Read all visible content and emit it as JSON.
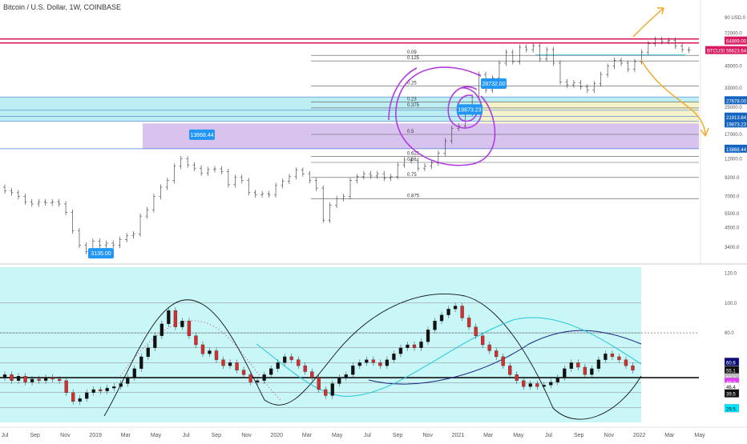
{
  "header": {
    "title": "Bitcoin / U.S. Dollar, 1W, COINBASE"
  },
  "chart_data": {
    "type": "candlestick",
    "price_axis": {
      "scale": "log",
      "ticks": [
        "90 USD.0",
        "72000.0",
        "45000.0",
        "33000.0",
        "25000.0",
        "17000.0",
        "12000.0",
        "9200.0",
        "7000.0",
        "5500.0",
        "4500.0",
        "3400.0"
      ]
    },
    "time_axis": {
      "labels": [
        "Jul",
        "Sep",
        "Nov",
        "2019",
        "Mar",
        "May",
        "Jul",
        "Sep",
        "Nov",
        "2020",
        "Mar",
        "May",
        "Jul",
        "Sep",
        "Nov",
        "2021",
        "Mar",
        "May",
        "Jul",
        "Sep",
        "Nov",
        "2022",
        "Mar",
        "May"
      ]
    },
    "price_badges": [
      {
        "text": "64899.00",
        "value": 64899,
        "bg": "#d81b60"
      },
      {
        "text": "56623.64",
        "value": 56623.64,
        "bg": "#d81b60",
        "symbol": "BTCUSD"
      },
      {
        "text": "27678.00",
        "value": 27678,
        "bg": "#1565c0"
      },
      {
        "text": "21913.84",
        "value": 21913.84,
        "bg": "#1565c0"
      },
      {
        "text": "19873.23",
        "value": 19873.23,
        "bg": "#1565c0"
      },
      {
        "text": "13868.44",
        "value": 13868.44,
        "bg": "#1565c0"
      }
    ],
    "callouts": [
      {
        "text": "13868.44",
        "value": 13868.44
      },
      {
        "text": "3135.00",
        "value": 3135
      },
      {
        "text": "28732.00",
        "value": 28732
      },
      {
        "text": "19873.23",
        "value": 19873.23
      }
    ],
    "fib_levels": [
      {
        "label": "0.09",
        "value": 52500
      },
      {
        "label": "0.125",
        "value": 48500
      },
      {
        "label": "0.25",
        "value": 34000
      },
      {
        "label": "0.23",
        "value": 27000
      },
      {
        "label": "0.375",
        "value": 24800
      },
      {
        "label": "0.5",
        "value": 17000
      },
      {
        "label": "0.625",
        "value": 12400
      },
      {
        "label": "0.66",
        "value": 11400
      },
      {
        "label": "0.75",
        "value": 9200
      },
      {
        "label": "0.875",
        "value": 6800
      }
    ],
    "zones": [
      {
        "name": "cyan-band",
        "from": 20500,
        "to": 29000,
        "color": "#b2ebf2"
      },
      {
        "name": "yellow-band",
        "from": 19873,
        "to": 27000,
        "color": "#fff3c4"
      },
      {
        "name": "purple-band",
        "from": 13868,
        "to": 19873,
        "color": "#d1b8ec"
      }
    ],
    "price_series": [
      {
        "o": 8000,
        "c": 7600
      },
      {
        "o": 7600,
        "c": 7400
      },
      {
        "o": 7400,
        "c": 7000
      },
      {
        "o": 7000,
        "c": 6500
      },
      {
        "o": 6500,
        "c": 6300
      },
      {
        "o": 6300,
        "c": 6500
      },
      {
        "o": 6500,
        "c": 6400
      },
      {
        "o": 6400,
        "c": 6500
      },
      {
        "o": 6500,
        "c": 6300
      },
      {
        "o": 6300,
        "c": 5600
      },
      {
        "o": 5600,
        "c": 4300
      },
      {
        "o": 4300,
        "c": 3500
      },
      {
        "o": 3500,
        "c": 3200
      },
      {
        "o": 3200,
        "c": 3700
      },
      {
        "o": 3700,
        "c": 3500
      },
      {
        "o": 3500,
        "c": 3600
      },
      {
        "o": 3600,
        "c": 3500
      },
      {
        "o": 3500,
        "c": 3800
      },
      {
        "o": 3800,
        "c": 4000
      },
      {
        "o": 4000,
        "c": 4100
      },
      {
        "o": 4100,
        "c": 5300
      },
      {
        "o": 5300,
        "c": 5800
      },
      {
        "o": 5800,
        "c": 7000
      },
      {
        "o": 7000,
        "c": 8000
      },
      {
        "o": 8000,
        "c": 8800
      },
      {
        "o": 8800,
        "c": 10800
      },
      {
        "o": 10800,
        "c": 12000
      },
      {
        "o": 12000,
        "c": 11000
      },
      {
        "o": 11000,
        "c": 10500
      },
      {
        "o": 10500,
        "c": 9800
      },
      {
        "o": 9800,
        "c": 10300
      },
      {
        "o": 10300,
        "c": 10400
      },
      {
        "o": 10400,
        "c": 10000
      },
      {
        "o": 10000,
        "c": 8300
      },
      {
        "o": 8300,
        "c": 9200
      },
      {
        "o": 9200,
        "c": 8800
      },
      {
        "o": 8800,
        "c": 7400
      },
      {
        "o": 7400,
        "c": 7200
      },
      {
        "o": 7200,
        "c": 7300
      },
      {
        "o": 7300,
        "c": 7200
      },
      {
        "o": 7200,
        "c": 8200
      },
      {
        "o": 8200,
        "c": 8700
      },
      {
        "o": 8700,
        "c": 9300
      },
      {
        "o": 9300,
        "c": 10200
      },
      {
        "o": 10200,
        "c": 9700
      },
      {
        "o": 9700,
        "c": 8800
      },
      {
        "o": 8800,
        "c": 7900
      },
      {
        "o": 7900,
        "c": 5000
      },
      {
        "o": 5000,
        "c": 6200
      },
      {
        "o": 6200,
        "c": 6800
      },
      {
        "o": 6800,
        "c": 7000
      },
      {
        "o": 7000,
        "c": 8800
      },
      {
        "o": 8800,
        "c": 9300
      },
      {
        "o": 9300,
        "c": 9700
      },
      {
        "o": 9700,
        "c": 9400
      },
      {
        "o": 9400,
        "c": 9700
      },
      {
        "o": 9700,
        "c": 9100
      },
      {
        "o": 9100,
        "c": 9300
      },
      {
        "o": 9300,
        "c": 11000
      },
      {
        "o": 11000,
        "c": 11800
      },
      {
        "o": 11800,
        "c": 11700
      },
      {
        "o": 11700,
        "c": 10500
      },
      {
        "o": 10500,
        "c": 10800
      },
      {
        "o": 10800,
        "c": 11300
      },
      {
        "o": 11300,
        "c": 13000
      },
      {
        "o": 13000,
        "c": 15500
      },
      {
        "o": 15500,
        "c": 18500
      },
      {
        "o": 18500,
        "c": 19200
      },
      {
        "o": 19200,
        "c": 23000
      },
      {
        "o": 23000,
        "c": 29000
      },
      {
        "o": 29000,
        "c": 40000
      },
      {
        "o": 40000,
        "c": 32000
      },
      {
        "o": 32000,
        "c": 38000
      },
      {
        "o": 38000,
        "c": 47000
      },
      {
        "o": 47000,
        "c": 55000
      },
      {
        "o": 55000,
        "c": 48000
      },
      {
        "o": 48000,
        "c": 59000
      },
      {
        "o": 59000,
        "c": 57000
      },
      {
        "o": 57000,
        "c": 60000
      },
      {
        "o": 60000,
        "c": 50000
      },
      {
        "o": 50000,
        "c": 57000
      },
      {
        "o": 57000,
        "c": 47000
      },
      {
        "o": 47000,
        "c": 36000
      },
      {
        "o": 36000,
        "c": 34500
      },
      {
        "o": 34500,
        "c": 35500
      },
      {
        "o": 35500,
        "c": 33500
      },
      {
        "o": 33500,
        "c": 32000
      },
      {
        "o": 32000,
        "c": 35000
      },
      {
        "o": 35000,
        "c": 40000
      },
      {
        "o": 40000,
        "c": 45000
      },
      {
        "o": 45000,
        "c": 49000
      },
      {
        "o": 49000,
        "c": 47000
      },
      {
        "o": 47000,
        "c": 43000
      },
      {
        "o": 43000,
        "c": 48000
      },
      {
        "o": 48000,
        "c": 55000
      },
      {
        "o": 55000,
        "c": 62000
      },
      {
        "o": 62000,
        "c": 66000
      },
      {
        "o": 66000,
        "c": 64000
      },
      {
        "o": 64000,
        "c": 65000
      },
      {
        "o": 65000,
        "c": 60000
      },
      {
        "o": 60000,
        "c": 57000
      },
      {
        "o": 57000,
        "c": 56600
      }
    ],
    "oscillator": {
      "axis_ticks": [
        "120.0",
        "100.0",
        "80.0"
      ],
      "level_badges": [
        {
          "text": "60.6",
          "bg": "#0d0d7a",
          "fg": "#ffffff"
        },
        {
          "text": "55.1",
          "bg": "#111111",
          "fg": "#ffffff"
        },
        {
          "text": "50.2",
          "bg": "#bdbdbd",
          "fg": "#ffffff"
        },
        {
          "text": "47.2",
          "bg": "#e040fb",
          "fg": "#ffffff"
        },
        {
          "text": "46.4",
          "bg": "#ffffff",
          "fg": "#111111"
        },
        {
          "text": "39.5",
          "bg": "#111111",
          "fg": "#ffffff"
        },
        {
          "text": "29.5",
          "bg": "#00e5ff",
          "fg": "#111111"
        }
      ],
      "bars": [
        {
          "o": 50,
          "c": 52
        },
        {
          "o": 52,
          "c": 48
        },
        {
          "o": 48,
          "c": 51
        },
        {
          "o": 51,
          "c": 47
        },
        {
          "o": 47,
          "c": 49
        },
        {
          "o": 49,
          "c": 48
        },
        {
          "o": 48,
          "c": 50
        },
        {
          "o": 50,
          "c": 49
        },
        {
          "o": 49,
          "c": 48
        },
        {
          "o": 48,
          "c": 40
        },
        {
          "o": 40,
          "c": 34
        },
        {
          "o": 34,
          "c": 36
        },
        {
          "o": 36,
          "c": 40
        },
        {
          "o": 40,
          "c": 42
        },
        {
          "o": 42,
          "c": 41
        },
        {
          "o": 41,
          "c": 43
        },
        {
          "o": 43,
          "c": 44
        },
        {
          "o": 44,
          "c": 46
        },
        {
          "o": 46,
          "c": 50
        },
        {
          "o": 50,
          "c": 56
        },
        {
          "o": 56,
          "c": 64
        },
        {
          "o": 64,
          "c": 70
        },
        {
          "o": 70,
          "c": 78
        },
        {
          "o": 78,
          "c": 86
        },
        {
          "o": 86,
          "c": 95
        },
        {
          "o": 95,
          "c": 84
        },
        {
          "o": 84,
          "c": 88
        },
        {
          "o": 88,
          "c": 78
        },
        {
          "o": 78,
          "c": 72
        },
        {
          "o": 72,
          "c": 66
        },
        {
          "o": 66,
          "c": 68
        },
        {
          "o": 68,
          "c": 62
        },
        {
          "o": 62,
          "c": 58
        },
        {
          "o": 58,
          "c": 60
        },
        {
          "o": 60,
          "c": 55
        },
        {
          "o": 55,
          "c": 52
        },
        {
          "o": 52,
          "c": 47
        },
        {
          "o": 47,
          "c": 48
        },
        {
          "o": 48,
          "c": 52
        },
        {
          "o": 52,
          "c": 56
        },
        {
          "o": 56,
          "c": 60
        },
        {
          "o": 60,
          "c": 64
        },
        {
          "o": 64,
          "c": 62
        },
        {
          "o": 62,
          "c": 58
        },
        {
          "o": 58,
          "c": 54
        },
        {
          "o": 54,
          "c": 50
        },
        {
          "o": 50,
          "c": 42
        },
        {
          "o": 42,
          "c": 38
        },
        {
          "o": 38,
          "c": 46
        },
        {
          "o": 46,
          "c": 50
        },
        {
          "o": 50,
          "c": 52
        },
        {
          "o": 52,
          "c": 58
        },
        {
          "o": 58,
          "c": 60
        },
        {
          "o": 60,
          "c": 62
        },
        {
          "o": 62,
          "c": 60
        },
        {
          "o": 60,
          "c": 58
        },
        {
          "o": 58,
          "c": 62
        },
        {
          "o": 62,
          "c": 66
        },
        {
          "o": 66,
          "c": 70
        },
        {
          "o": 70,
          "c": 72
        },
        {
          "o": 72,
          "c": 70
        },
        {
          "o": 70,
          "c": 74
        },
        {
          "o": 74,
          "c": 82
        },
        {
          "o": 82,
          "c": 88
        },
        {
          "o": 88,
          "c": 92
        },
        {
          "o": 92,
          "c": 96
        },
        {
          "o": 96,
          "c": 98
        },
        {
          "o": 98,
          "c": 90
        },
        {
          "o": 90,
          "c": 84
        },
        {
          "o": 84,
          "c": 78
        },
        {
          "o": 78,
          "c": 72
        },
        {
          "o": 72,
          "c": 68
        },
        {
          "o": 68,
          "c": 64
        },
        {
          "o": 64,
          "c": 58
        },
        {
          "o": 58,
          "c": 52
        },
        {
          "o": 52,
          "c": 48
        },
        {
          "o": 48,
          "c": 44
        },
        {
          "o": 44,
          "c": 46
        },
        {
          "o": 46,
          "c": 44
        },
        {
          "o": 44,
          "c": 45
        },
        {
          "o": 45,
          "c": 47
        },
        {
          "o": 47,
          "c": 50
        },
        {
          "o": 50,
          "c": 56
        },
        {
          "o": 56,
          "c": 60
        },
        {
          "o": 60,
          "c": 57
        },
        {
          "o": 57,
          "c": 52
        },
        {
          "o": 52,
          "c": 56
        },
        {
          "o": 56,
          "c": 62
        },
        {
          "o": 62,
          "c": 66
        },
        {
          "o": 66,
          "c": 64
        },
        {
          "o": 64,
          "c": 62
        },
        {
          "o": 62,
          "c": 58
        },
        {
          "o": 58,
          "c": 55
        }
      ]
    },
    "colors": {
      "up": "#111111",
      "down": "#d32f2f",
      "price_line": "#d81b60",
      "oscillator_bg": "#c9f6f7",
      "arrow": "#f5a623",
      "circle": "#b13be0"
    }
  }
}
